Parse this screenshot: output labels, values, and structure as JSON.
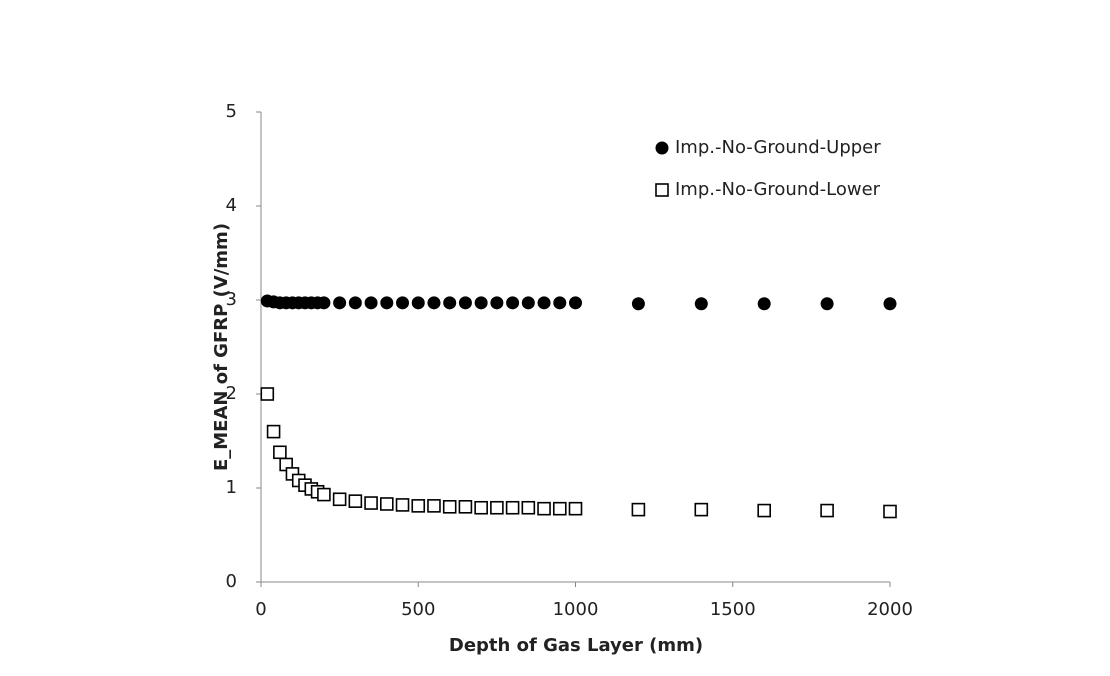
{
  "chart_data": {
    "type": "scatter",
    "x_label": "Depth of Gas Layer (mm)",
    "y_label": "E_MEAN of GFRP (V/mm)",
    "xlim": [
      0,
      2000
    ],
    "xticks": [
      0,
      500,
      1000,
      1500,
      2000
    ],
    "ylim": [
      0,
      5
    ],
    "yticks": [
      0,
      1,
      2,
      3,
      4,
      5
    ],
    "legend": "top-right",
    "x": [
      20,
      40,
      60,
      80,
      100,
      120,
      140,
      160,
      180,
      200,
      250,
      300,
      350,
      400,
      450,
      500,
      550,
      600,
      650,
      700,
      750,
      800,
      850,
      900,
      950,
      1000,
      1200,
      1400,
      1600,
      1800,
      2000
    ],
    "series": [
      {
        "name": "Imp.-No-Ground-Upper",
        "color": "#000000",
        "marker": "circle",
        "values": [
          2.99,
          2.98,
          2.97,
          2.97,
          2.97,
          2.97,
          2.97,
          2.97,
          2.97,
          2.97,
          2.97,
          2.97,
          2.97,
          2.97,
          2.97,
          2.97,
          2.97,
          2.97,
          2.97,
          2.97,
          2.97,
          2.97,
          2.97,
          2.97,
          2.97,
          2.97,
          2.96,
          2.96,
          2.96,
          2.96,
          2.96
        ]
      },
      {
        "name": "Imp.-No-Ground-Lower",
        "color": "#000000",
        "marker": "square",
        "values": [
          2.0,
          1.6,
          1.38,
          1.25,
          1.15,
          1.08,
          1.03,
          0.99,
          0.96,
          0.93,
          0.88,
          0.86,
          0.84,
          0.83,
          0.82,
          0.81,
          0.81,
          0.8,
          0.8,
          0.79,
          0.79,
          0.79,
          0.79,
          0.78,
          0.78,
          0.78,
          0.77,
          0.77,
          0.76,
          0.76,
          0.75
        ]
      }
    ]
  }
}
